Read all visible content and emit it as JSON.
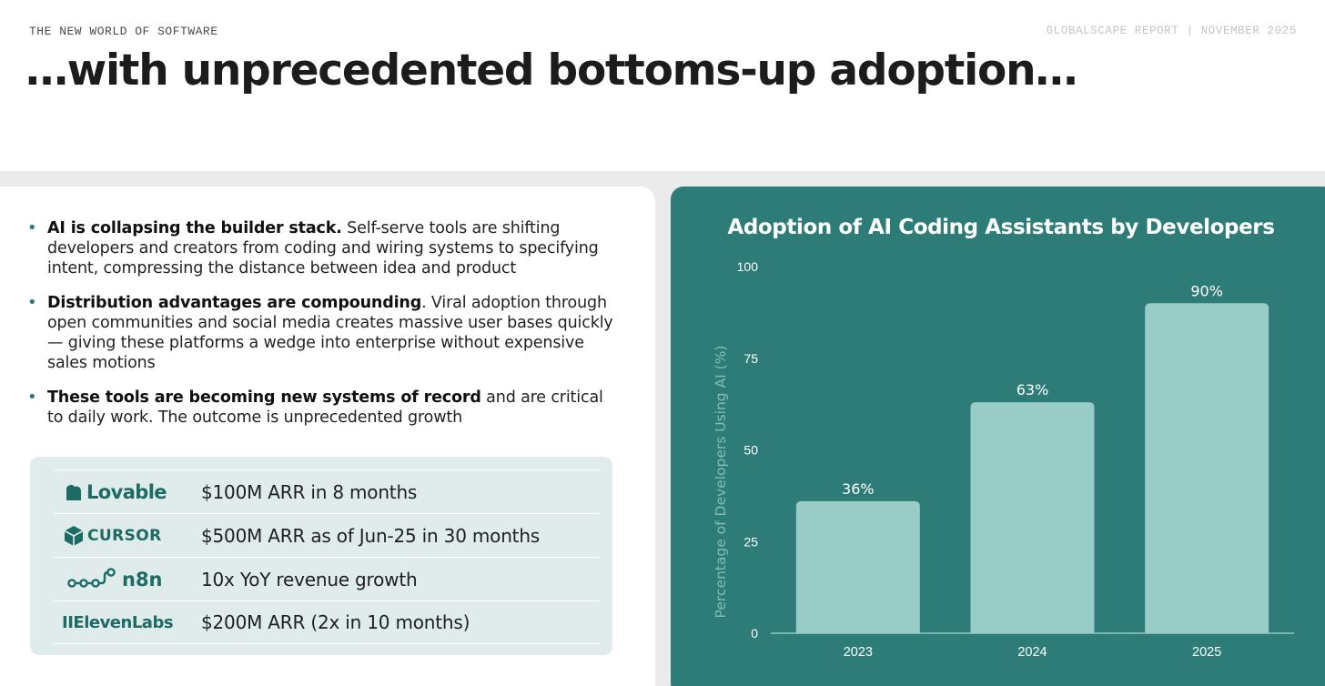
{
  "header": {
    "kicker": "THE NEW WORLD OF SOFTWARE",
    "report": "GLOBALSCAPE REPORT | NOVEMBER 2025",
    "headline": "…with unprecedented bottoms-up adoption…"
  },
  "bullets": [
    {
      "bold": "AI is collapsing the builder stack.",
      "text": " Self-serve tools are shifting developers and creators from coding and wiring systems to specifying intent, compressing the distance between idea and product"
    },
    {
      "bold": "Distribution advantages are compounding",
      "text": ". Viral adoption through open communities and social media creates massive user bases quickly — giving these platforms a wedge into enterprise without expensive sales motions"
    },
    {
      "bold": "These tools are becoming new systems of record",
      "text": " and are critical to daily work. The outcome is unprecedented growth"
    }
  ],
  "companies": [
    {
      "name": "Lovable",
      "stat": "$100M ARR in 8 months",
      "icon": "heart-icon"
    },
    {
      "name": "CURSOR",
      "stat": "$500M ARR as of Jun-25 in 30 months",
      "icon": "cube-icon"
    },
    {
      "name": "n8n",
      "stat": "10x YoY revenue growth",
      "icon": "workflow-nodes-icon"
    },
    {
      "name": "IIElevenLabs",
      "stat": "$200M ARR (2x in 10 months)",
      "icon": ""
    }
  ],
  "chart_data": {
    "type": "bar",
    "title": "Adoption of AI Coding Assistants by Developers",
    "xlabel": "",
    "ylabel": "Percentage of Developers Using AI (%)",
    "categories": [
      "2023",
      "2024",
      "2025"
    ],
    "values": [
      36,
      63,
      90
    ],
    "data_labels": [
      "36%",
      "63%",
      "90%"
    ],
    "ylim": [
      0,
      100
    ],
    "yticks": [
      0,
      25,
      50,
      75,
      100
    ],
    "grid": false,
    "colors": {
      "bar": "#99ccc7",
      "background": "#2e7c77",
      "text": "#ffffff",
      "axis_label": "#7fbdb6"
    }
  }
}
